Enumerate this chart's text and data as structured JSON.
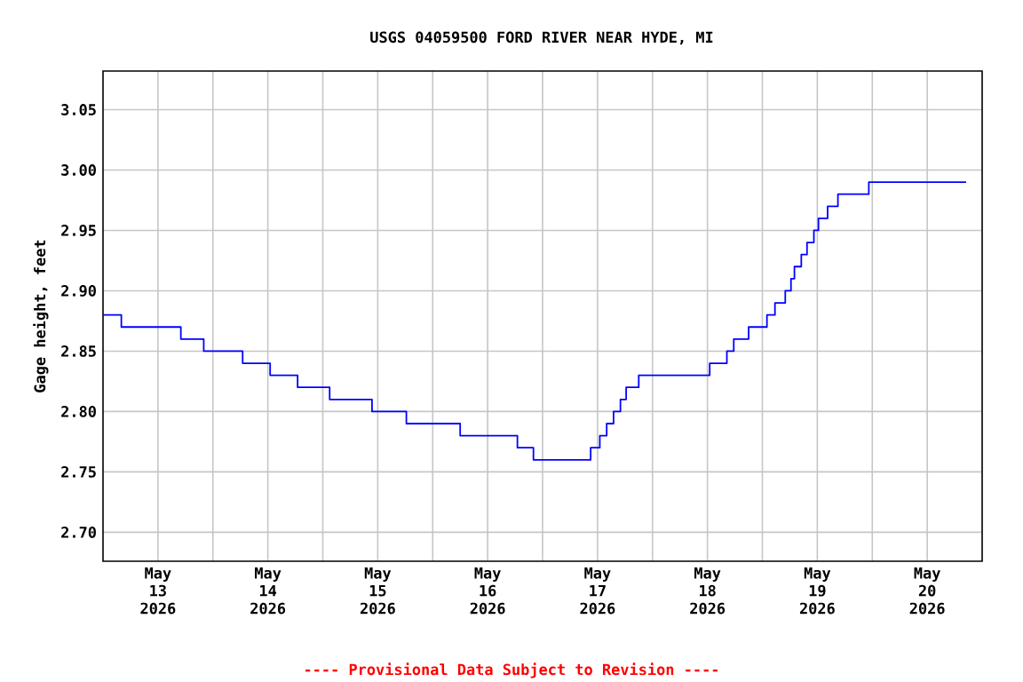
{
  "chart_data": {
    "type": "step",
    "title": "USGS 04059500 FORD RIVER NEAR HYDE, MI",
    "ylabel": "Gage height, feet",
    "annotations": [
      "---- Provisional Data Subject to Revision ----"
    ],
    "x": [
      "2026-05-13T00:00",
      "2026-05-13T04:00",
      "2026-05-13T17:00",
      "2026-05-13T22:00",
      "2026-05-14T06:30",
      "2026-05-14T12:30",
      "2026-05-14T18:30",
      "2026-05-15T01:30",
      "2026-05-15T10:45",
      "2026-05-15T18:15",
      "2026-05-16T06:00",
      "2026-05-16T18:30",
      "2026-05-16T22:00",
      "2026-05-17T10:30",
      "2026-05-17T12:30",
      "2026-05-17T14:00",
      "2026-05-17T15:30",
      "2026-05-17T17:00",
      "2026-05-17T18:15",
      "2026-05-17T21:00",
      "2026-05-18T12:30",
      "2026-05-18T16:15",
      "2026-05-18T17:45",
      "2026-05-18T21:00",
      "2026-05-19T01:00",
      "2026-05-19T02:45",
      "2026-05-19T05:00",
      "2026-05-19T06:15",
      "2026-05-19T07:00",
      "2026-05-19T08:30",
      "2026-05-19T09:45",
      "2026-05-19T11:15",
      "2026-05-19T12:15",
      "2026-05-19T14:15",
      "2026-05-19T16:30",
      "2026-05-19T23:15",
      "2026-05-20T20:30"
    ],
    "series": [
      {
        "color": "#0000ff",
        "values": [
          2.88,
          2.87,
          2.86,
          2.85,
          2.84,
          2.83,
          2.82,
          2.81,
          2.8,
          2.79,
          2.78,
          2.77,
          2.76,
          2.77,
          2.78,
          2.79,
          2.8,
          2.81,
          2.82,
          2.83,
          2.84,
          2.85,
          2.86,
          2.87,
          2.88,
          2.89,
          2.9,
          2.91,
          2.92,
          2.93,
          2.94,
          2.95,
          2.96,
          2.97,
          2.98,
          2.99,
          2.99
        ]
      }
    ],
    "xlim": [
      "2026-05-13T00:00",
      "2026-05-21T00:00"
    ],
    "xticks": [
      {
        "value": "2026-05-13T12:00",
        "label": "May 13 2026"
      },
      {
        "value": "2026-05-14T00:00",
        "label": null
      },
      {
        "value": "2026-05-14T12:00",
        "label": "May 14 2026"
      },
      {
        "value": "2026-05-15T00:00",
        "label": null
      },
      {
        "value": "2026-05-15T12:00",
        "label": "May 15 2026"
      },
      {
        "value": "2026-05-16T00:00",
        "label": null
      },
      {
        "value": "2026-05-16T12:00",
        "label": "May 16 2026"
      },
      {
        "value": "2026-05-17T00:00",
        "label": null
      },
      {
        "value": "2026-05-17T12:00",
        "label": "May 17 2026"
      },
      {
        "value": "2026-05-18T00:00",
        "label": null
      },
      {
        "value": "2026-05-18T12:00",
        "label": "May 18 2026"
      },
      {
        "value": "2026-05-19T00:00",
        "label": null
      },
      {
        "value": "2026-05-19T12:00",
        "label": "May 19 2026"
      },
      {
        "value": "2026-05-20T00:00",
        "label": null
      },
      {
        "value": "2026-05-20T12:00",
        "label": "May 20 2026"
      }
    ],
    "ylim": [
      2.676,
      3.082
    ],
    "yticks": [
      {
        "value": 2.7,
        "label": "2.70"
      },
      2.75,
      {
        "value": 2.8,
        "label": "2.80"
      },
      2.85,
      {
        "value": 2.9,
        "label": "2.90"
      },
      2.95,
      {
        "value": 3.0,
        "label": "3.00"
      },
      3.05
    ],
    "grid": true
  }
}
